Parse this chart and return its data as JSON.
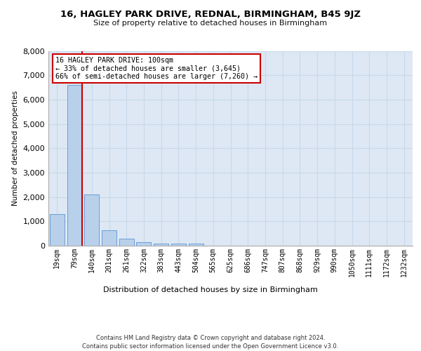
{
  "title1": "16, HAGLEY PARK DRIVE, REDNAL, BIRMINGHAM, B45 9JZ",
  "title2": "Size of property relative to detached houses in Birmingham",
  "xlabel": "Distribution of detached houses by size in Birmingham",
  "ylabel": "Number of detached properties",
  "categories": [
    "19sqm",
    "79sqm",
    "140sqm",
    "201sqm",
    "261sqm",
    "322sqm",
    "383sqm",
    "443sqm",
    "504sqm",
    "565sqm",
    "625sqm",
    "686sqm",
    "747sqm",
    "807sqm",
    "868sqm",
    "929sqm",
    "990sqm",
    "1050sqm",
    "1111sqm",
    "1172sqm",
    "1232sqm"
  ],
  "bar_values": [
    1300,
    6600,
    2100,
    630,
    290,
    150,
    100,
    80,
    100,
    0,
    0,
    0,
    0,
    0,
    0,
    0,
    0,
    0,
    0,
    0,
    0
  ],
  "bar_color": "#b8d0ea",
  "bar_edge_color": "#6a9fd8",
  "vline_color": "#cc0000",
  "vline_x": 1.43,
  "annotation_text": "16 HAGLEY PARK DRIVE: 100sqm\n← 33% of detached houses are smaller (3,645)\n66% of semi-detached houses are larger (7,260) →",
  "annotation_box_facecolor": "#ffffff",
  "annotation_box_edgecolor": "#cc0000",
  "ylim": [
    0,
    8000
  ],
  "yticks": [
    0,
    1000,
    2000,
    3000,
    4000,
    5000,
    6000,
    7000,
    8000
  ],
  "grid_color": "#c8d8ea",
  "background_color": "#dde8f4",
  "footer1": "Contains HM Land Registry data © Crown copyright and database right 2024.",
  "footer2": "Contains public sector information licensed under the Open Government Licence v3.0."
}
